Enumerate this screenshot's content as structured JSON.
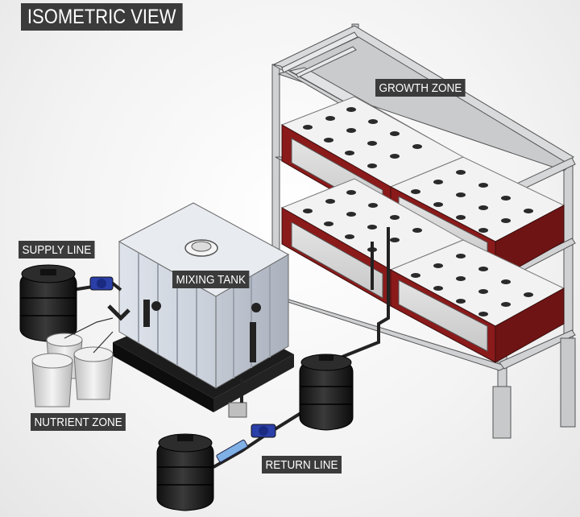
{
  "title": "ISOMETRIC VIEW",
  "labels": {
    "growth_zone": "GROWTH ZONE",
    "mixing_tank": "MIXING TANK",
    "supply_line": "SUPPLY LINE",
    "nutrient_zone": "NUTRIENT ZONE",
    "return_line": "RETURN LINE"
  },
  "colors": {
    "label_bg": "#3b3b3b",
    "label_text": "#ffffff",
    "tray_red": "#8b1a1a",
    "frame_steel": "#d0d2d4",
    "tank_black": "#1e1e1e",
    "valve_blue": "#2a3fa8"
  }
}
